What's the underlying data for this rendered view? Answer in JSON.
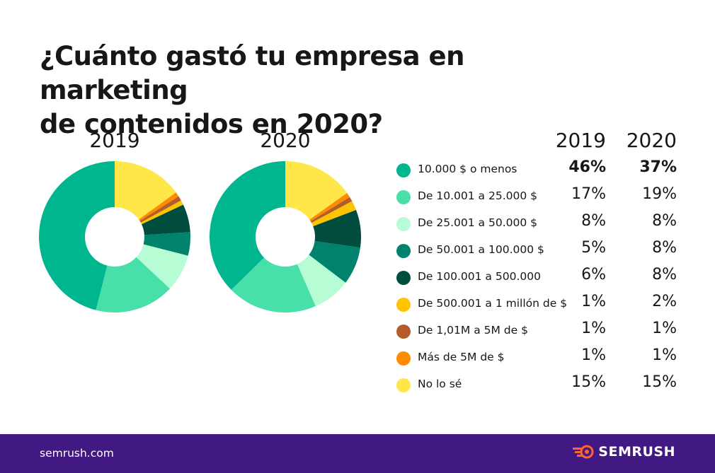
{
  "title_line1": "¿Cuánto gastó tu empresa en marketing",
  "title_line2": "de contenidos en 2020?",
  "footer": {
    "site": "semrush.com",
    "brand": "SEMRUSH"
  },
  "chart_data": {
    "type": "pie",
    "donut": true,
    "charts": [
      "2019",
      "2020"
    ],
    "columns": [
      "2019",
      "2020"
    ],
    "categories": [
      "10.000 $ o menos",
      "De 10.001 a 25.000 $",
      "De 25.001 a 50.000 $",
      "De 50.001 a 100.000 $",
      "De 100.001 a 500.000",
      "De 500.001 a 1 millón de $",
      "De 1,01M a 5M de $",
      "Más de 5M de $",
      "No lo sé"
    ],
    "colors": [
      "#00b68f",
      "#48e0a8",
      "#b6fdd6",
      "#00826c",
      "#004d3d",
      "#ffc400",
      "#b35e28",
      "#ff8c00",
      "#ffe74a"
    ],
    "series": [
      {
        "name": "2019",
        "values": [
          46,
          17,
          8,
          5,
          6,
          1,
          1,
          1,
          15
        ],
        "labels": [
          "46%",
          "17%",
          "8%",
          "5%",
          "6%",
          "1%",
          "1%",
          "1%",
          "15%"
        ]
      },
      {
        "name": "2020",
        "values": [
          37,
          19,
          8,
          8,
          8,
          2,
          1,
          1,
          15
        ],
        "labels": [
          "37%",
          "19%",
          "8%",
          "8%",
          "8%",
          "2%",
          "1%",
          "1%",
          "15%"
        ]
      }
    ],
    "legend_position": "right"
  }
}
